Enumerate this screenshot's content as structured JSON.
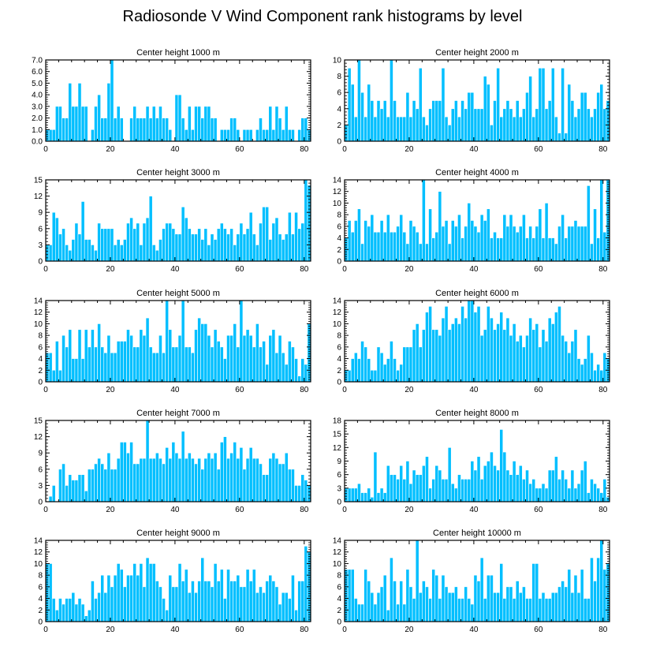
{
  "title": "Radiosonde V Wind Component rank histograms by level",
  "colors": {
    "bar": "#00bfff",
    "bar_edge": "#ffffff",
    "axis": "#000000"
  },
  "chart_data": [
    {
      "type": "bar",
      "title": "Center height 1000 m",
      "xlim": [
        0,
        82
      ],
      "ylim": [
        0,
        7
      ],
      "xticks": [
        0,
        20,
        40,
        60,
        80
      ],
      "yticks": [
        0,
        1,
        2,
        3,
        4,
        5,
        6,
        7
      ],
      "ytick_format": "fixed1",
      "values": [
        1,
        1,
        1,
        3,
        3,
        2,
        2,
        5,
        3,
        3,
        5,
        3,
        3,
        0,
        1,
        3,
        4,
        2,
        2,
        5,
        7,
        2,
        3,
        2,
        0,
        0,
        2,
        3,
        2,
        2,
        2,
        3,
        2,
        3,
        2,
        3,
        2,
        2,
        1,
        0,
        4,
        4,
        2,
        1,
        3,
        1,
        3,
        3,
        2,
        3,
        3,
        2,
        2,
        0,
        1,
        1,
        1,
        2,
        2,
        1,
        0,
        1,
        1,
        1,
        0,
        1,
        2,
        1,
        1,
        3,
        1,
        3,
        2,
        1,
        3,
        1,
        1,
        0,
        1,
        2,
        2,
        1
      ]
    },
    {
      "type": "bar",
      "title": "Center height 2000 m",
      "xlim": [
        0,
        82
      ],
      "ylim": [
        0,
        10
      ],
      "xticks": [
        0,
        20,
        40,
        60,
        80
      ],
      "yticks": [
        0,
        2,
        4,
        6,
        8,
        10
      ],
      "ytick_format": "int",
      "values": [
        2,
        9,
        7,
        3,
        10,
        6,
        3,
        7,
        5,
        3,
        5,
        4,
        5,
        3,
        10,
        5,
        3,
        3,
        3,
        6,
        3,
        5,
        4,
        9,
        3,
        2,
        4,
        5,
        5,
        5,
        9,
        3,
        2,
        4,
        5,
        3,
        5,
        4,
        6,
        6,
        4,
        4,
        4,
        8,
        7,
        2,
        5,
        9,
        3,
        4,
        5,
        4,
        3,
        5,
        3,
        4,
        6,
        8,
        3,
        4,
        9,
        9,
        4,
        5,
        9,
        3,
        1,
        9,
        1,
        7,
        5,
        3,
        4,
        6,
        6,
        4,
        3,
        4,
        6,
        7,
        4,
        5
      ]
    },
    {
      "type": "bar",
      "title": "Center height 3000 m",
      "xlim": [
        0,
        82
      ],
      "ylim": [
        0,
        15
      ],
      "xticks": [
        0,
        20,
        40,
        60,
        80
      ],
      "yticks": [
        0,
        3,
        6,
        9,
        12,
        15
      ],
      "ytick_format": "int",
      "values": [
        3,
        3,
        9,
        8,
        5,
        6,
        3,
        2,
        4,
        7,
        5,
        11,
        4,
        4,
        3,
        2,
        7,
        6,
        6,
        6,
        6,
        3,
        4,
        3,
        4,
        7,
        8,
        6,
        7,
        3,
        7,
        8,
        12,
        3,
        2,
        4,
        6,
        7,
        7,
        6,
        5,
        5,
        10,
        8,
        6,
        5,
        5,
        6,
        4,
        6,
        3,
        5,
        4,
        6,
        7,
        6,
        5,
        6,
        3,
        5,
        7,
        5,
        6,
        9,
        5,
        3,
        7,
        10,
        10,
        4,
        7,
        8,
        5,
        4,
        5,
        9,
        5,
        9,
        6,
        7,
        15,
        14
      ]
    },
    {
      "type": "bar",
      "title": "Center height 4000 m",
      "xlim": [
        0,
        82
      ],
      "ylim": [
        0,
        14
      ],
      "xticks": [
        0,
        20,
        40,
        60,
        80
      ],
      "yticks": [
        0,
        2,
        4,
        6,
        8,
        10,
        12,
        14
      ],
      "ytick_format": "int",
      "values": [
        4,
        7,
        5,
        7,
        9,
        3,
        7,
        6,
        8,
        5,
        5,
        7,
        5,
        8,
        5,
        5,
        6,
        8,
        5,
        3,
        7,
        6,
        5,
        3,
        14,
        3,
        9,
        4,
        5,
        12,
        6,
        7,
        3,
        7,
        6,
        8,
        4,
        6,
        10,
        7,
        6,
        5,
        8,
        7,
        9,
        4,
        5,
        4,
        4,
        8,
        6,
        8,
        6,
        5,
        6,
        8,
        4,
        6,
        4,
        6,
        9,
        4,
        10,
        4,
        4,
        3,
        6,
        8,
        4,
        6,
        6,
        7,
        6,
        6,
        6,
        13,
        3,
        9,
        4,
        14,
        5,
        14
      ]
    },
    {
      "type": "bar",
      "title": "Center height 5000 m",
      "xlim": [
        0,
        82
      ],
      "ylim": [
        0,
        14
      ],
      "xticks": [
        0,
        20,
        40,
        60,
        80
      ],
      "yticks": [
        0,
        2,
        4,
        6,
        8,
        10,
        12,
        14
      ],
      "ytick_format": "int",
      "values": [
        5,
        5,
        2,
        7,
        2,
        8,
        6,
        9,
        4,
        4,
        9,
        4,
        9,
        6,
        9,
        6,
        10,
        6,
        5,
        8,
        5,
        5,
        7,
        7,
        7,
        9,
        8,
        6,
        6,
        9,
        8,
        11,
        6,
        5,
        5,
        8,
        5,
        14,
        9,
        6,
        6,
        8,
        14,
        6,
        6,
        5,
        9,
        11,
        10,
        10,
        8,
        6,
        9,
        7,
        6,
        4,
        8,
        8,
        10,
        6,
        14,
        8,
        9,
        8,
        6,
        10,
        6,
        7,
        3,
        8,
        9,
        5,
        8,
        5,
        3,
        7,
        6,
        4,
        1,
        4,
        3,
        10
      ]
    },
    {
      "type": "bar",
      "title": "Center height 6000 m",
      "xlim": [
        0,
        82
      ],
      "ylim": [
        0,
        14
      ],
      "xticks": [
        0,
        20,
        40,
        60,
        80
      ],
      "yticks": [
        0,
        2,
        4,
        6,
        8,
        10,
        12,
        14
      ],
      "ytick_format": "int",
      "values": [
        2,
        2,
        4,
        5,
        4,
        7,
        6,
        4,
        2,
        2,
        6,
        5,
        3,
        4,
        7,
        4,
        2,
        3,
        6,
        6,
        6,
        9,
        10,
        6,
        9,
        12,
        13,
        9,
        9,
        8,
        11,
        13,
        9,
        10,
        11,
        10,
        13,
        11,
        14,
        14,
        12,
        13,
        8,
        9,
        13,
        11,
        9,
        10,
        12,
        9,
        11,
        8,
        10,
        7,
        8,
        6,
        8,
        11,
        9,
        10,
        6,
        9,
        7,
        11,
        10,
        12,
        13,
        8,
        7,
        5,
        7,
        9,
        4,
        3,
        4,
        8,
        5,
        2,
        3,
        2,
        5,
        4
      ]
    },
    {
      "type": "bar",
      "title": "Center height 7000 m",
      "xlim": [
        0,
        82
      ],
      "ylim": [
        0,
        15
      ],
      "xticks": [
        0,
        20,
        40,
        60,
        80
      ],
      "yticks": [
        0,
        3,
        6,
        9,
        12,
        15
      ],
      "ytick_format": "int",
      "values": [
        0,
        1,
        3,
        0,
        6,
        7,
        3,
        5,
        4,
        4,
        5,
        5,
        2,
        6,
        6,
        7,
        8,
        7,
        6,
        9,
        6,
        6,
        8,
        11,
        11,
        9,
        11,
        7,
        7,
        8,
        8,
        15,
        8,
        8,
        9,
        8,
        7,
        10,
        8,
        11,
        9,
        8,
        13,
        8,
        9,
        8,
        7,
        8,
        6,
        8,
        9,
        8,
        9,
        6,
        11,
        12,
        8,
        9,
        11,
        8,
        10,
        6,
        8,
        10,
        8,
        8,
        7,
        5,
        5,
        8,
        9,
        8,
        7,
        7,
        9,
        6,
        6,
        3,
        3,
        5,
        4,
        3
      ]
    },
    {
      "type": "bar",
      "title": "Center height 8000 m",
      "xlim": [
        0,
        82
      ],
      "ylim": [
        0,
        18
      ],
      "xticks": [
        0,
        20,
        40,
        60,
        80
      ],
      "yticks": [
        0,
        3,
        6,
        9,
        12,
        15,
        18
      ],
      "ytick_format": "int",
      "values": [
        3,
        3,
        3,
        3,
        4,
        2,
        2,
        3,
        1,
        11,
        2,
        3,
        2,
        8,
        6,
        6,
        5,
        8,
        5,
        9,
        4,
        7,
        6,
        6,
        8,
        10,
        3,
        5,
        8,
        7,
        5,
        5,
        12,
        4,
        3,
        6,
        5,
        5,
        5,
        9,
        7,
        10,
        5,
        8,
        9,
        11,
        8,
        7,
        16,
        11,
        7,
        6,
        9,
        6,
        8,
        5,
        7,
        4,
        5,
        3,
        3,
        4,
        3,
        7,
        7,
        10,
        5,
        7,
        5,
        3,
        7,
        3,
        4,
        7,
        9,
        2,
        5,
        4,
        3,
        2,
        5,
        1
      ]
    },
    {
      "type": "bar",
      "title": "Center height 9000 m",
      "xlim": [
        0,
        82
      ],
      "ylim": [
        0,
        14
      ],
      "xticks": [
        0,
        20,
        40,
        60,
        80
      ],
      "yticks": [
        0,
        2,
        4,
        6,
        8,
        10,
        12,
        14
      ],
      "ytick_format": "int",
      "values": [
        10,
        10,
        4,
        2,
        4,
        3,
        4,
        4,
        5,
        3,
        4,
        3,
        1,
        2,
        7,
        4,
        5,
        8,
        5,
        8,
        6,
        8,
        10,
        9,
        6,
        8,
        8,
        10,
        8,
        10,
        6,
        11,
        10,
        10,
        7,
        6,
        4,
        2,
        8,
        6,
        6,
        10,
        7,
        9,
        5,
        7,
        5,
        7,
        11,
        7,
        7,
        6,
        10,
        7,
        9,
        4,
        9,
        7,
        7,
        8,
        6,
        6,
        9,
        7,
        9,
        5,
        6,
        5,
        7,
        8,
        7,
        6,
        3,
        5,
        5,
        4,
        8,
        2,
        7,
        7,
        13,
        12
      ]
    },
    {
      "type": "bar",
      "title": "Center height 10000 m",
      "xlim": [
        0,
        82
      ],
      "ylim": [
        0,
        14
      ],
      "xticks": [
        0,
        20,
        40,
        60,
        80
      ],
      "yticks": [
        0,
        2,
        4,
        6,
        8,
        10,
        12,
        14
      ],
      "ytick_format": "int",
      "values": [
        9,
        9,
        9,
        4,
        3,
        3,
        9,
        7,
        5,
        3,
        5,
        6,
        8,
        2,
        11,
        7,
        3,
        7,
        3,
        9,
        6,
        4,
        14,
        5,
        7,
        6,
        4,
        9,
        8,
        4,
        8,
        6,
        5,
        5,
        6,
        4,
        4,
        6,
        4,
        3,
        8,
        7,
        11,
        4,
        8,
        8,
        5,
        5,
        10,
        4,
        6,
        6,
        4,
        7,
        5,
        6,
        4,
        4,
        10,
        10,
        4,
        5,
        4,
        4,
        5,
        5,
        6,
        7,
        6,
        9,
        5,
        8,
        5,
        9,
        4,
        4,
        11,
        7,
        11,
        14,
        9,
        10
      ]
    }
  ]
}
